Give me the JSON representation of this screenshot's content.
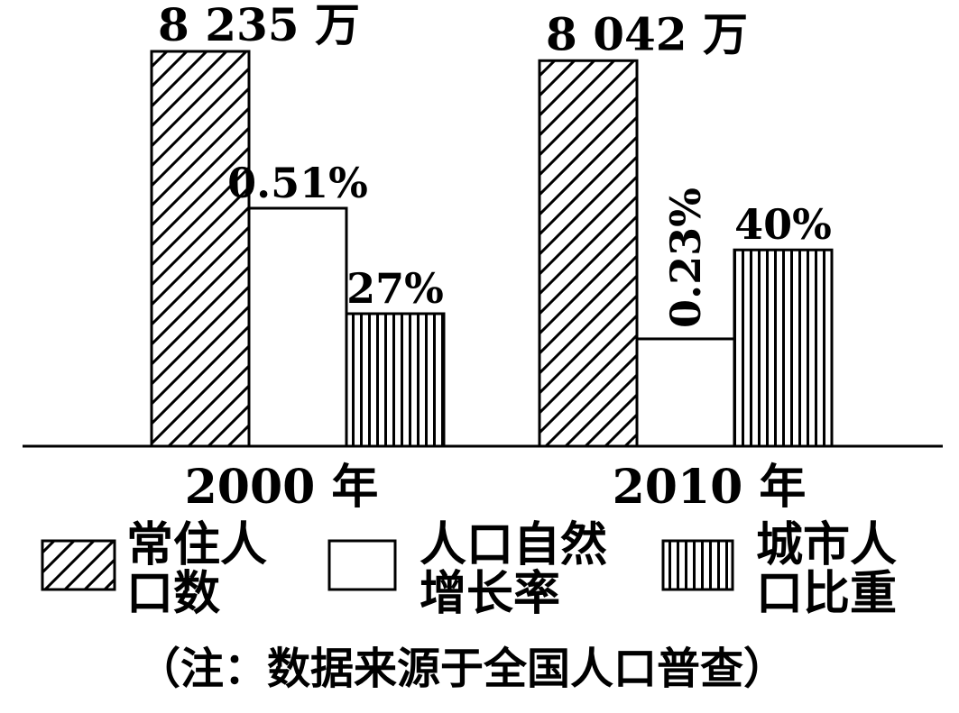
{
  "chart_data": {
    "type": "bar",
    "categories": [
      "2000 年",
      "2010 年"
    ],
    "series": [
      {
        "name": "常住人口数",
        "pattern": "diagonal",
        "values": [
          8235,
          8042
        ],
        "labels": [
          "8 235 万",
          "8 042 万"
        ]
      },
      {
        "name": "人口自然增长率",
        "pattern": "blank",
        "values": [
          0.51,
          0.23
        ],
        "labels": [
          "0.51%",
          "0.23%"
        ]
      },
      {
        "name": "城市人口比重",
        "pattern": "vertical",
        "values": [
          27,
          40
        ],
        "labels": [
          "27%",
          "40%"
        ]
      }
    ],
    "legend": [
      {
        "pattern": "diagonal",
        "line1": "常住人",
        "line2": "口数"
      },
      {
        "pattern": "blank",
        "line1": "人口自然",
        "line2": "增长率"
      },
      {
        "pattern": "vertical",
        "line1": "城市人",
        "line2": "口比重"
      }
    ],
    "legend_position": "bottom",
    "note": "（注：数据来源于全国人口普查）",
    "grid": false,
    "colors": {
      "stroke": "#000000",
      "fill": "#ffffff"
    }
  }
}
